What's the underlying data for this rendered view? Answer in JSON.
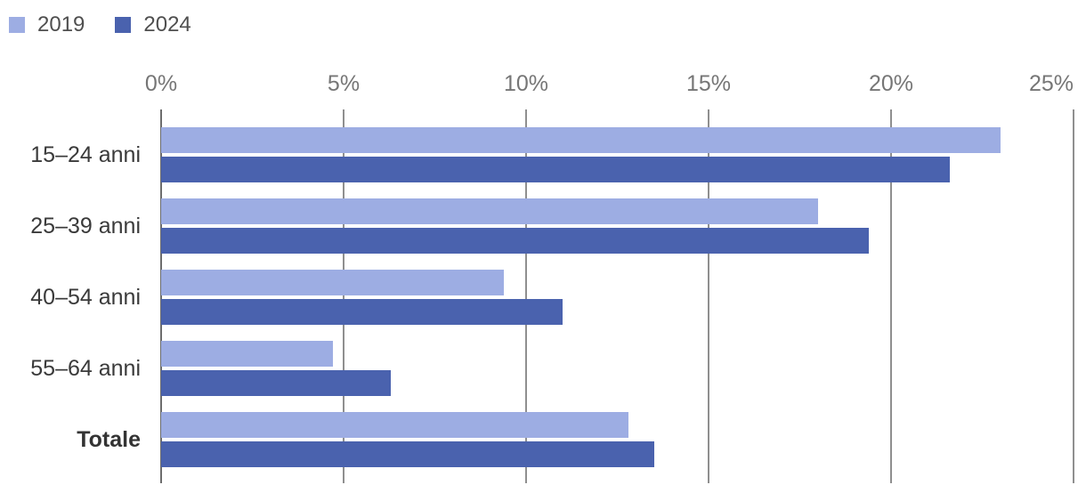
{
  "chart_data": {
    "type": "bar",
    "orientation": "horizontal",
    "title": "",
    "categories": [
      "15–24 anni",
      "25–39 anni",
      "40–54 anni",
      "55–64 anni",
      "Totale"
    ],
    "series": [
      {
        "name": "2019",
        "color": "#9dade3",
        "values": [
          23.0,
          18.0,
          9.4,
          4.7,
          12.8
        ]
      },
      {
        "name": "2024",
        "color": "#4a62ae",
        "values": [
          21.6,
          19.4,
          11.0,
          6.3,
          13.5
        ]
      }
    ],
    "value_unit": "%",
    "xlim": [
      0,
      25
    ],
    "x_ticks": [
      {
        "value": 0,
        "label": "0%"
      },
      {
        "value": 5,
        "label": "5%"
      },
      {
        "value": 10,
        "label": "10%"
      },
      {
        "value": 15,
        "label": "15%"
      },
      {
        "value": 20,
        "label": "20%"
      },
      {
        "value": 25,
        "label": "25%"
      }
    ],
    "grid": true,
    "legend_position": "top-left",
    "bold_categories": [
      "Totale"
    ],
    "colors": {
      "series_2019": "#9dade3",
      "series_2024": "#4a62ae",
      "gridline": "#8f8f8f",
      "axis_line": "#6d6d6d",
      "tick_text": "#767676",
      "category_text": "#3a3a3a",
      "legend_text": "#4f4f4f"
    }
  }
}
